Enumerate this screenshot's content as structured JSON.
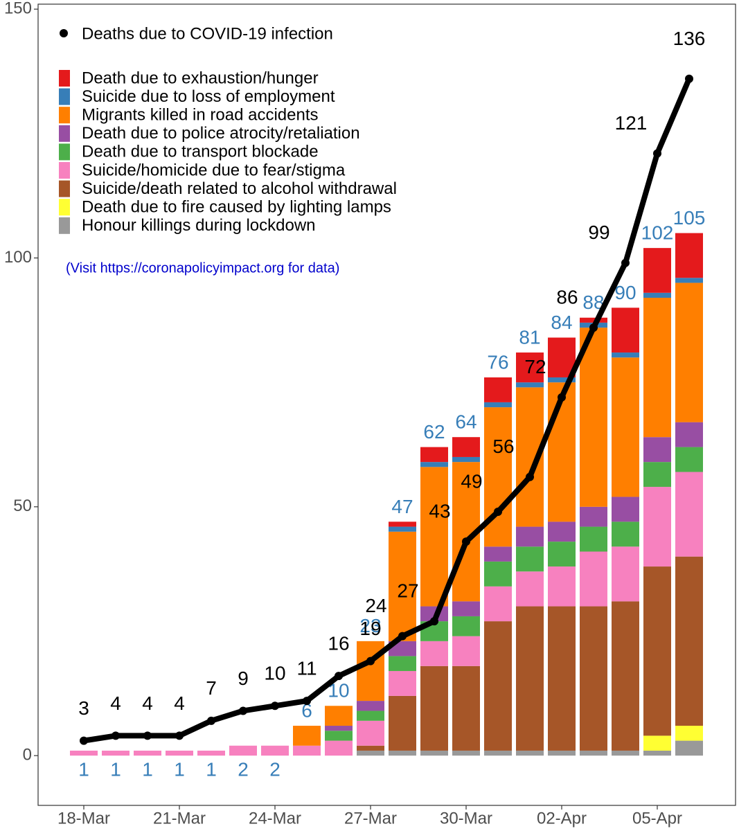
{
  "chart_data": {
    "type": "bar",
    "annotation": "(Visit https://coronapolicyimpact.org for data)",
    "categories": [
      "18-Mar",
      null,
      null,
      "21-Mar",
      null,
      null,
      "24-Mar",
      null,
      null,
      "27-Mar",
      null,
      null,
      "30-Mar",
      null,
      null,
      "02-Apr",
      null,
      null,
      "05-Apr",
      null
    ],
    "ylim": [
      -10,
      151
    ],
    "yticks": [
      0,
      50,
      100,
      150
    ],
    "grid": true,
    "series": [
      {
        "name": "Honour killings during lockdown",
        "color": "#999999",
        "values": [
          0,
          0,
          0,
          0,
          0,
          0,
          0,
          0,
          0,
          1,
          1,
          1,
          1,
          1,
          1,
          1,
          1,
          1,
          1,
          3
        ]
      },
      {
        "name": "Death due to fire caused by lighting lamps",
        "color": "#ffff33",
        "values": [
          0,
          0,
          0,
          0,
          0,
          0,
          0,
          0,
          0,
          0,
          0,
          0,
          0,
          0,
          0,
          0,
          0,
          0,
          3,
          3
        ]
      },
      {
        "name": "Suicide/death related to alcohol withdrawal",
        "color": "#a65628",
        "values": [
          0,
          0,
          0,
          0,
          0,
          0,
          0,
          0,
          0,
          1,
          11,
          17,
          17,
          26,
          29,
          29,
          29,
          30,
          34,
          34
        ]
      },
      {
        "name": "Suicide/homicide due to fear/stigma",
        "color": "#f781bf",
        "values": [
          1,
          1,
          1,
          1,
          1,
          2,
          2,
          2,
          3,
          5,
          5,
          5,
          6,
          7,
          7,
          8,
          11,
          11,
          16,
          17
        ]
      },
      {
        "name": "Death due to transport blockade",
        "color": "#4daf4a",
        "values": [
          0,
          0,
          0,
          0,
          0,
          0,
          0,
          0,
          2,
          2,
          3,
          4,
          4,
          5,
          5,
          5,
          5,
          5,
          5,
          5
        ]
      },
      {
        "name": "Death due to police atrocity/retaliation",
        "color": "#984ea3",
        "values": [
          0,
          0,
          0,
          0,
          0,
          0,
          0,
          0,
          1,
          2,
          3,
          3,
          3,
          3,
          4,
          4,
          4,
          5,
          5,
          5
        ]
      },
      {
        "name": "Migrants killed in road accidents",
        "color": "#ff7f00",
        "values": [
          0,
          0,
          0,
          0,
          0,
          0,
          0,
          4,
          4,
          12,
          22,
          28,
          28,
          28,
          28,
          28,
          36,
          28,
          28,
          28
        ]
      },
      {
        "name": "Suicide due to loss of employment",
        "color": "#377eb8",
        "values": [
          0,
          0,
          0,
          0,
          0,
          0,
          0,
          0,
          0,
          0,
          1,
          1,
          1,
          1,
          1,
          1,
          1,
          1,
          1,
          1
        ]
      },
      {
        "name": "Death due to exhaustion/hunger",
        "color": "#e41a1c",
        "values": [
          0,
          0,
          0,
          0,
          0,
          0,
          0,
          0,
          0,
          0,
          1,
          3,
          4,
          5,
          6,
          8,
          1,
          9,
          9,
          9
        ]
      }
    ],
    "totals": {
      "color": "#377eb8",
      "values": [
        1,
        1,
        1,
        1,
        1,
        2,
        2,
        6,
        10,
        23,
        47,
        62,
        64,
        76,
        81,
        84,
        88,
        90,
        102,
        105
      ]
    },
    "line": {
      "name": "Deaths due to COVID-19 infection",
      "color": "#000000",
      "values": [
        3,
        4,
        4,
        4,
        7,
        9,
        10,
        11,
        16,
        19,
        24,
        27,
        43,
        49,
        56,
        72,
        86,
        99,
        121,
        136
      ]
    }
  }
}
